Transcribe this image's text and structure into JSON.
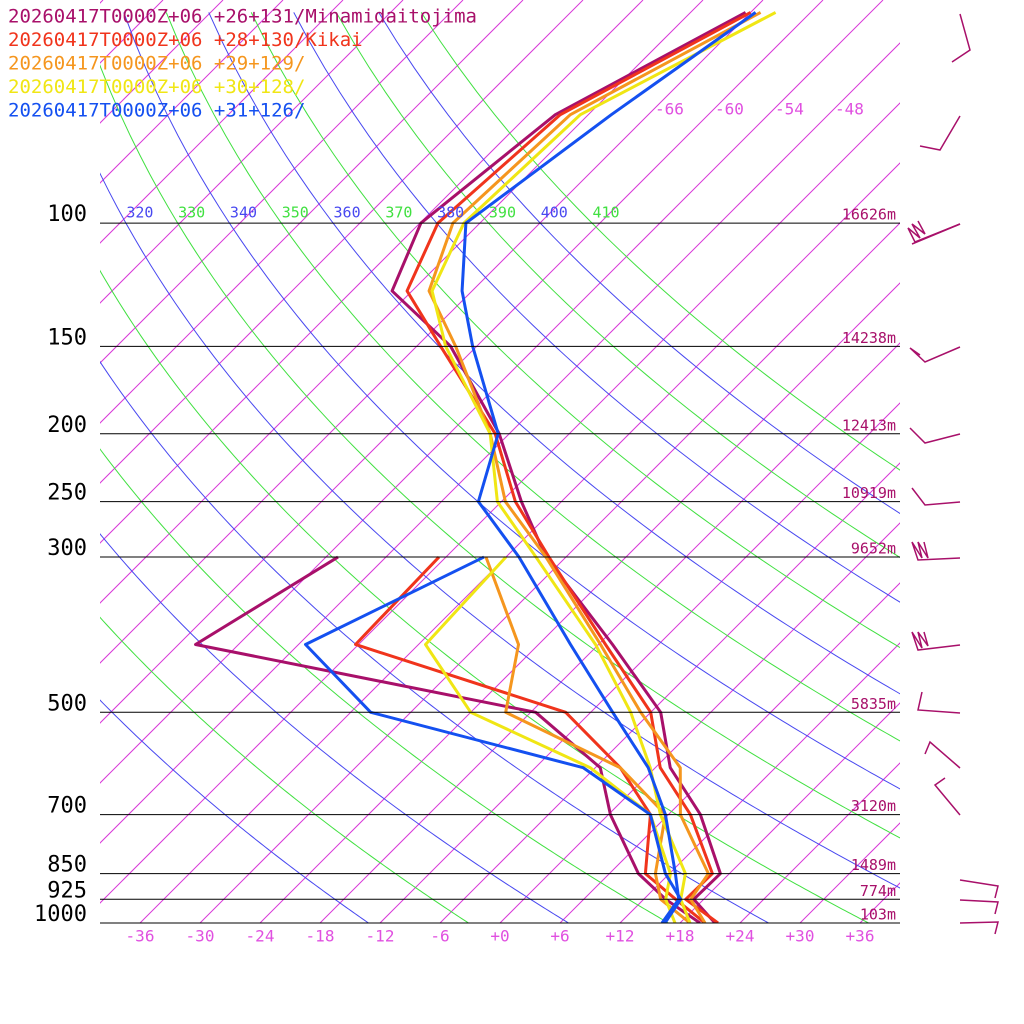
{
  "chart_data": {
    "type": "skewt",
    "pressure_levels": [
      1000,
      925,
      850,
      700,
      600,
      500,
      400,
      300,
      250,
      200,
      150,
      125,
      100,
      70,
      50
    ],
    "ylim": [
      1000,
      48
    ],
    "xlim": [
      -40,
      40
    ],
    "log_y": true,
    "yticks": [
      100,
      150,
      200,
      250,
      300,
      500,
      700,
      850,
      925,
      1000
    ],
    "xticks": [
      -36,
      -30,
      -24,
      -18,
      -12,
      -6,
      {
        "value": 0,
        "label": "+0"
      },
      {
        "value": 6,
        "label": "+6"
      },
      {
        "value": 12,
        "label": "+12"
      },
      {
        "value": 18,
        "label": "+18"
      },
      {
        "value": 24,
        "label": "+24"
      },
      {
        "value": 30,
        "label": "+30"
      },
      {
        "value": 36,
        "label": "+36"
      }
    ],
    "top_isotherm_labels": [
      -66,
      -60,
      -54,
      -48
    ],
    "theta_labels": [
      {
        "value": 320,
        "color": "#4848f0"
      },
      {
        "value": 330,
        "color": "#40e040"
      },
      {
        "value": 340,
        "color": "#4848f0"
      },
      {
        "value": 350,
        "color": "#40e040"
      },
      {
        "value": 360,
        "color": "#4848f0"
      },
      {
        "value": 370,
        "color": "#40e040"
      },
      {
        "value": 380,
        "color": "#4848f0"
      },
      {
        "value": 390,
        "color": "#40e040"
      },
      {
        "value": 400,
        "color": "#4848f0"
      },
      {
        "value": 410,
        "color": "#40e040"
      }
    ],
    "height_labels": [
      {
        "pressure": 100,
        "label": "16626m"
      },
      {
        "pressure": 150,
        "label": "14238m"
      },
      {
        "pressure": 200,
        "label": "12413m"
      },
      {
        "pressure": 250,
        "label": "10919m"
      },
      {
        "pressure": 300,
        "label": "9652m"
      },
      {
        "pressure": 500,
        "label": "5835m"
      },
      {
        "pressure": 700,
        "label": "3120m"
      },
      {
        "pressure": 850,
        "label": "1489m"
      },
      {
        "pressure": 925,
        "label": "774m"
      },
      {
        "pressure": 1000,
        "label": "103m"
      }
    ],
    "series": [
      {
        "name": "20260417T0000Z+06 +26+131/Minamidaitojima",
        "color": "#a8106a",
        "temperature": [
          21.5,
          17,
          17.1,
          9.2,
          1.5,
          -5,
          -16.6,
          -32,
          -40,
          -49,
          -62.6,
          -74,
          -77.9,
          -75.3,
          -66.5
        ],
        "dewpoint": [
          20,
          14.2,
          8.9,
          0.2,
          -5.5,
          -17.5,
          -58.3,
          -52.8,
          null,
          null,
          null,
          null,
          null,
          null,
          null
        ]
      },
      {
        "name": "20260417T0000Z+06 +28+130/Kikai",
        "color": "#f0341c",
        "temperature": [
          21.8,
          16.2,
          16.3,
          8.2,
          0.5,
          -6,
          -17.3,
          -31.7,
          -40.6,
          -49.4,
          -63.6,
          -72.5,
          -76.2,
          -74.8,
          -66
        ],
        "dewpoint": [
          20.5,
          15.2,
          9.6,
          4.2,
          -3.5,
          -14.5,
          -42.3,
          -42.7,
          null,
          null,
          null,
          null,
          null,
          null,
          null
        ]
      },
      {
        "name": "20260417T0000Z+06 +29+129/",
        "color": "#f5961e",
        "temperature": [
          20.5,
          16.7,
          15.9,
          7.2,
          2.5,
          -7,
          -17.8,
          -32,
          -41.6,
          -49.9,
          -62.1,
          -70.3,
          -74.7,
          -73.8,
          -65
        ],
        "dewpoint": [
          19,
          13.7,
          10.6,
          5.7,
          -3.5,
          -20.5,
          -26,
          -38,
          null,
          null,
          null,
          null,
          null,
          null,
          null
        ]
      },
      {
        "name": "20260417T0000Z+06 +30+128/",
        "color": "#f0e614",
        "temperature": [
          19,
          15.7,
          13.6,
          5.2,
          -0.5,
          -8,
          -18.3,
          -33,
          -42.4,
          -49.9,
          -63.1,
          -70,
          -73.6,
          -72.8,
          -63.5
        ],
        "dewpoint": [
          17.5,
          14.2,
          12.1,
          4.2,
          -6.5,
          -24,
          -35.3,
          -36,
          null,
          null,
          null,
          null,
          null,
          null,
          null
        ]
      },
      {
        "name": "20260417T0000Z+06 +31+126/",
        "color": "#1450f0",
        "temperature": [
          16.2,
          15.5,
          12.6,
          5.7,
          -0.7,
          -9.8,
          -20.8,
          -34.7,
          -44.3,
          -49.1,
          -60.4,
          -67,
          -73.4,
          -69.7,
          -65.5
        ],
        "dewpoint": [
          16.5,
          15.7,
          11.6,
          4.2,
          -7.2,
          -34,
          -47.3,
          -38.2,
          null,
          null,
          null,
          null,
          null,
          null,
          null
        ]
      }
    ]
  }
}
